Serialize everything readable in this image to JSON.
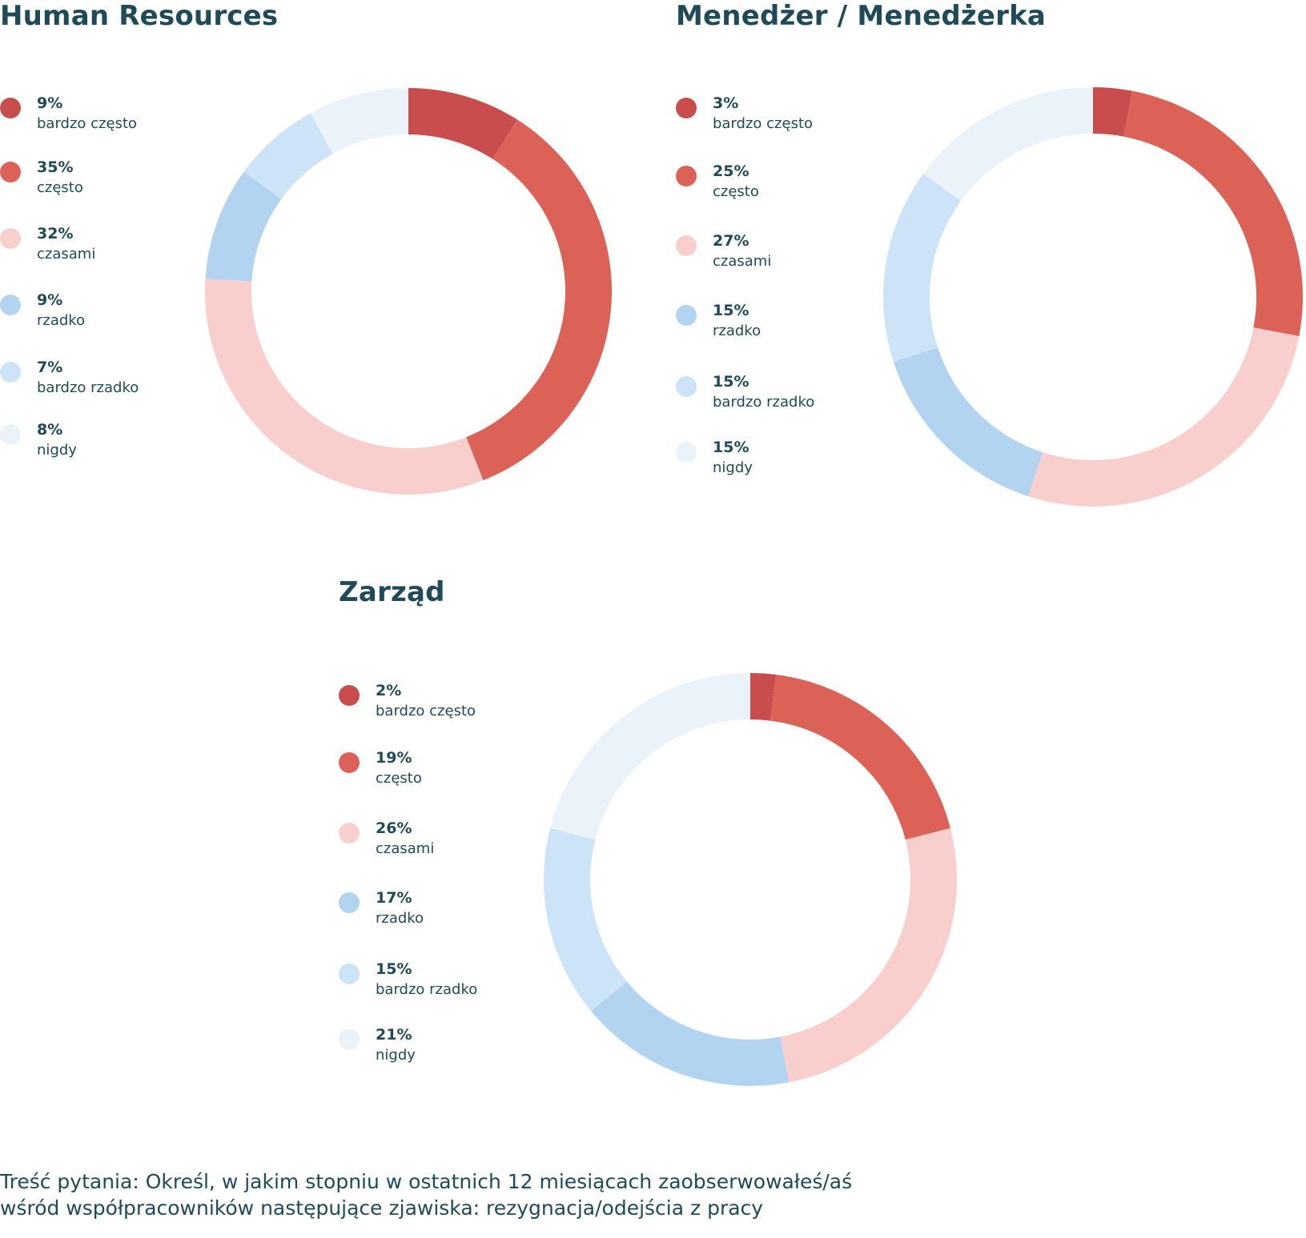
{
  "colors": {
    "bardzo_czesto": "#c94d4d",
    "czesto": "#dc6157",
    "czasami": "#f9cfcd",
    "rzadko": "#b2d4f1",
    "bardzo_rzadko": "#cce3f8",
    "nigdy": "#eaf3f9",
    "text": "#1f4a57"
  },
  "chart_data": [
    {
      "type": "pie",
      "title": "Human Resources",
      "categories": [
        "bardzo często",
        "często",
        "czasami",
        "rzadko",
        "bardzo rzadko",
        "nigdy"
      ],
      "values": [
        9,
        35,
        32,
        9,
        7,
        8
      ],
      "labels": [
        "9%",
        "35%",
        "32%",
        "9%",
        "7%",
        "8%"
      ],
      "legend_position": "left"
    },
    {
      "type": "pie",
      "title": "Menedżer / Menedżerka",
      "categories": [
        "bardzo często",
        "często",
        "czasami",
        "rzadko",
        "bardzo rzadko",
        "nigdy"
      ],
      "values": [
        3,
        25,
        27,
        15,
        15,
        15
      ],
      "labels": [
        "3%",
        "25%",
        "27%",
        "15%",
        "15%",
        "15%"
      ],
      "legend_position": "left"
    },
    {
      "type": "pie",
      "title": "Zarząd",
      "categories": [
        "bardzo często",
        "często",
        "czasami",
        "rzadko",
        "bardzo rzadko",
        "nigdy"
      ],
      "values": [
        2,
        19,
        26,
        17,
        15,
        21
      ],
      "labels": [
        "2%",
        "19%",
        "26%",
        "17%",
        "15%",
        "21%"
      ],
      "legend_position": "left"
    }
  ],
  "footnote": {
    "line1": "Treść pytania: Określ, w jakim stopniu w ostatnich 12 miesiącach zaobserwowałeś/aś",
    "line2": "wśród współpracowników następujące zjawiska: rezygnacja/odejścia z pracy"
  }
}
